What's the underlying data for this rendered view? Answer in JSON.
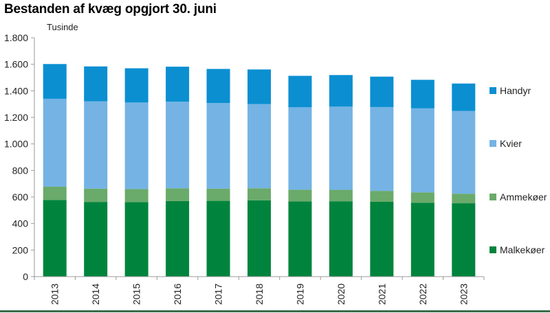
{
  "chart_data": {
    "type": "bar",
    "stacked": true,
    "title": "Bestanden af kvæg opgjort 30. juni",
    "unit_label": "Tusinde",
    "categories": [
      "2013",
      "2014",
      "2015",
      "2016",
      "2017",
      "2018",
      "2019",
      "2020",
      "2021",
      "2022",
      "2023"
    ],
    "series": [
      {
        "name": "Malkekøer",
        "color": "#00843d",
        "values": [
          578,
          563,
          562,
          570,
          571,
          575,
          567,
          568,
          564,
          557,
          553
        ]
      },
      {
        "name": "Ammekøer",
        "color": "#6aaa6a",
        "values": [
          100,
          100,
          98,
          96,
          92,
          91,
          88,
          86,
          82,
          78,
          72
        ]
      },
      {
        "name": "Kvier",
        "color": "#74b3e4",
        "values": [
          662,
          658,
          652,
          652,
          645,
          634,
          621,
          627,
          632,
          633,
          623
        ]
      },
      {
        "name": "Handyr",
        "color": "#0b8fd1",
        "values": [
          262,
          263,
          258,
          264,
          257,
          261,
          237,
          238,
          229,
          215,
          207
        ]
      }
    ],
    "ylim": [
      0,
      1800
    ],
    "yticks": [
      0,
      200,
      400,
      600,
      800,
      1000,
      1200,
      1400,
      1600,
      1800
    ],
    "ytick_labels": [
      "0",
      "200",
      "400",
      "600",
      "800",
      "1.000",
      "1.200",
      "1.400",
      "1.600",
      "1.800"
    ],
    "legend_position": "right",
    "legend_order": [
      "Handyr",
      "Kvier",
      "Ammekøer",
      "Malkekøer"
    ],
    "grid": false
  }
}
